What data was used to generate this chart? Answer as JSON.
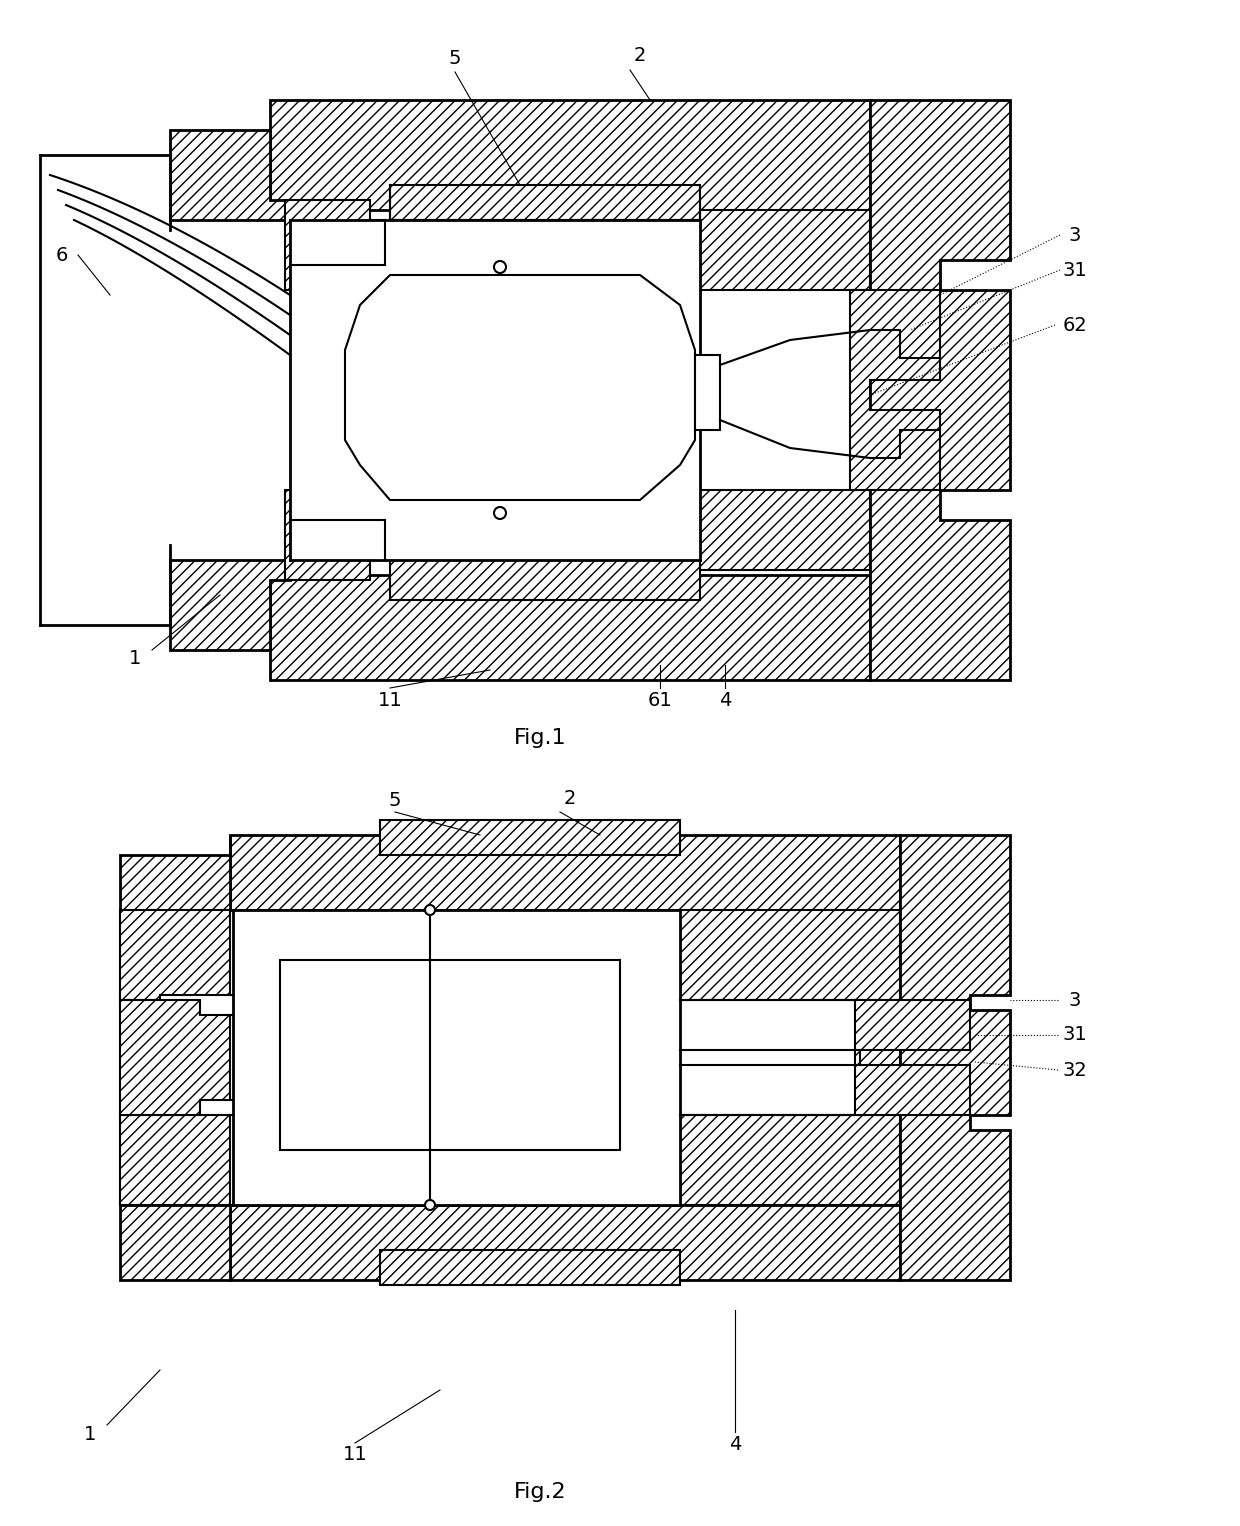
{
  "fig1_caption": "Fig.1",
  "fig2_caption": "Fig.2",
  "background_color": "#ffffff",
  "lw_thin": 1.0,
  "lw_med": 1.5,
  "lw_thick": 2.0,
  "label_fontsize": 14,
  "caption_fontsize": 16
}
